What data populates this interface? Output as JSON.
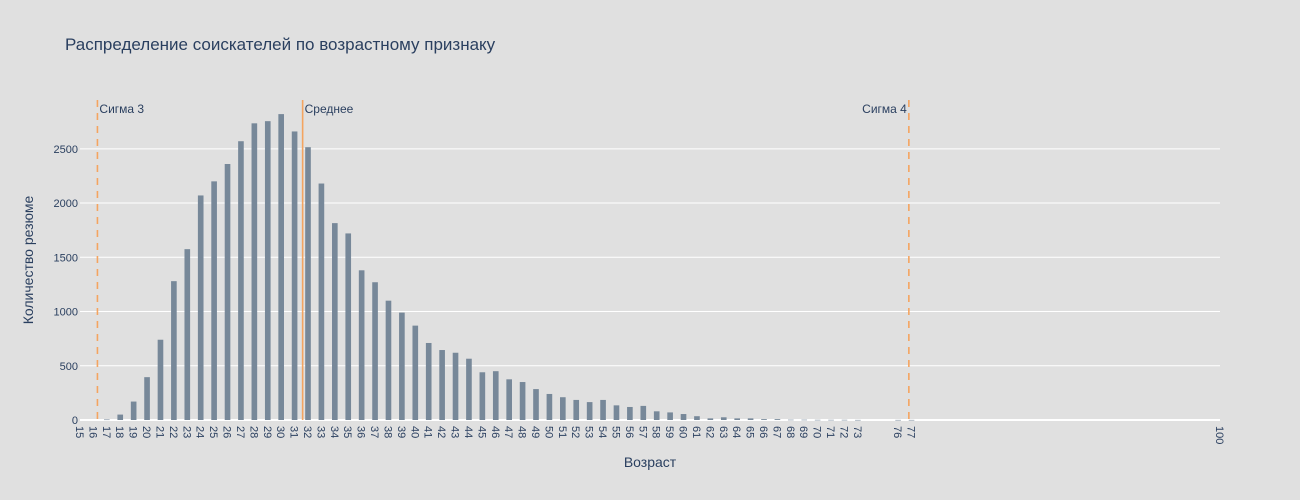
{
  "chart_data": {
    "type": "bar",
    "title": "Распределение соискателей по возрастному признаку",
    "xlabel": "Возраст",
    "ylabel": "Количество резюме",
    "xlim": [
      15,
      100
    ],
    "ylim": [
      0,
      2950
    ],
    "y_ticks": [
      0,
      500,
      1000,
      1500,
      2000,
      2500
    ],
    "x_tick_labels": [
      "15",
      "16",
      "17",
      "18",
      "19",
      "20",
      "21",
      "22",
      "23",
      "24",
      "25",
      "26",
      "27",
      "28",
      "29",
      "30",
      "31",
      "32",
      "33",
      "34",
      "35",
      "36",
      "37",
      "38",
      "39",
      "40",
      "41",
      "42",
      "43",
      "44",
      "45",
      "46",
      "47",
      "48",
      "49",
      "50",
      "51",
      "52",
      "53",
      "54",
      "55",
      "56",
      "57",
      "58",
      "59",
      "60",
      "61",
      "62",
      "63",
      "64",
      "65",
      "66",
      "67",
      "68",
      "69",
      "70",
      "71",
      "72",
      "73",
      "76",
      "77",
      "100"
    ],
    "grid": true,
    "bar_color": "#778899",
    "points": [
      {
        "x": 17,
        "y": 5
      },
      {
        "x": 18,
        "y": 50
      },
      {
        "x": 19,
        "y": 170
      },
      {
        "x": 20,
        "y": 395
      },
      {
        "x": 21,
        "y": 740
      },
      {
        "x": 22,
        "y": 1280
      },
      {
        "x": 23,
        "y": 1575
      },
      {
        "x": 24,
        "y": 2070
      },
      {
        "x": 25,
        "y": 2200
      },
      {
        "x": 26,
        "y": 2360
      },
      {
        "x": 27,
        "y": 2570
      },
      {
        "x": 28,
        "y": 2735
      },
      {
        "x": 29,
        "y": 2755
      },
      {
        "x": 30,
        "y": 2820
      },
      {
        "x": 31,
        "y": 2660
      },
      {
        "x": 32,
        "y": 2515
      },
      {
        "x": 33,
        "y": 2180
      },
      {
        "x": 34,
        "y": 1815
      },
      {
        "x": 35,
        "y": 1720
      },
      {
        "x": 36,
        "y": 1380
      },
      {
        "x": 37,
        "y": 1270
      },
      {
        "x": 38,
        "y": 1100
      },
      {
        "x": 39,
        "y": 990
      },
      {
        "x": 40,
        "y": 870
      },
      {
        "x": 41,
        "y": 710
      },
      {
        "x": 42,
        "y": 645
      },
      {
        "x": 43,
        "y": 620
      },
      {
        "x": 44,
        "y": 565
      },
      {
        "x": 45,
        "y": 440
      },
      {
        "x": 46,
        "y": 450
      },
      {
        "x": 47,
        "y": 375
      },
      {
        "x": 48,
        "y": 350
      },
      {
        "x": 49,
        "y": 285
      },
      {
        "x": 50,
        "y": 240
      },
      {
        "x": 51,
        "y": 210
      },
      {
        "x": 52,
        "y": 185
      },
      {
        "x": 53,
        "y": 165
      },
      {
        "x": 54,
        "y": 185
      },
      {
        "x": 55,
        "y": 135
      },
      {
        "x": 56,
        "y": 120
      },
      {
        "x": 57,
        "y": 130
      },
      {
        "x": 58,
        "y": 80
      },
      {
        "x": 59,
        "y": 70
      },
      {
        "x": 60,
        "y": 55
      },
      {
        "x": 61,
        "y": 35
      },
      {
        "x": 62,
        "y": 15
      },
      {
        "x": 63,
        "y": 25
      },
      {
        "x": 64,
        "y": 15
      },
      {
        "x": 65,
        "y": 15
      },
      {
        "x": 66,
        "y": 8
      },
      {
        "x": 67,
        "y": 8
      },
      {
        "x": 68,
        "y": 3
      },
      {
        "x": 69,
        "y": 3
      },
      {
        "x": 70,
        "y": 2
      },
      {
        "x": 71,
        "y": 2
      },
      {
        "x": 72,
        "y": 2
      },
      {
        "x": 73,
        "y": 1
      },
      {
        "x": 76,
        "y": 1
      },
      {
        "x": 77,
        "y": 1
      }
    ],
    "vertical_lines": [
      {
        "label": "Сигма 3",
        "x": 16.3,
        "style": "dashed",
        "color": "#f4a460",
        "label_side": "right"
      },
      {
        "label": "Среднее",
        "x": 31.6,
        "style": "solid",
        "color": "#f4a460",
        "label_side": "right"
      },
      {
        "label": "Сигма 4",
        "x": 76.8,
        "style": "dashed",
        "color": "#f4a460",
        "label_side": "left"
      }
    ]
  }
}
